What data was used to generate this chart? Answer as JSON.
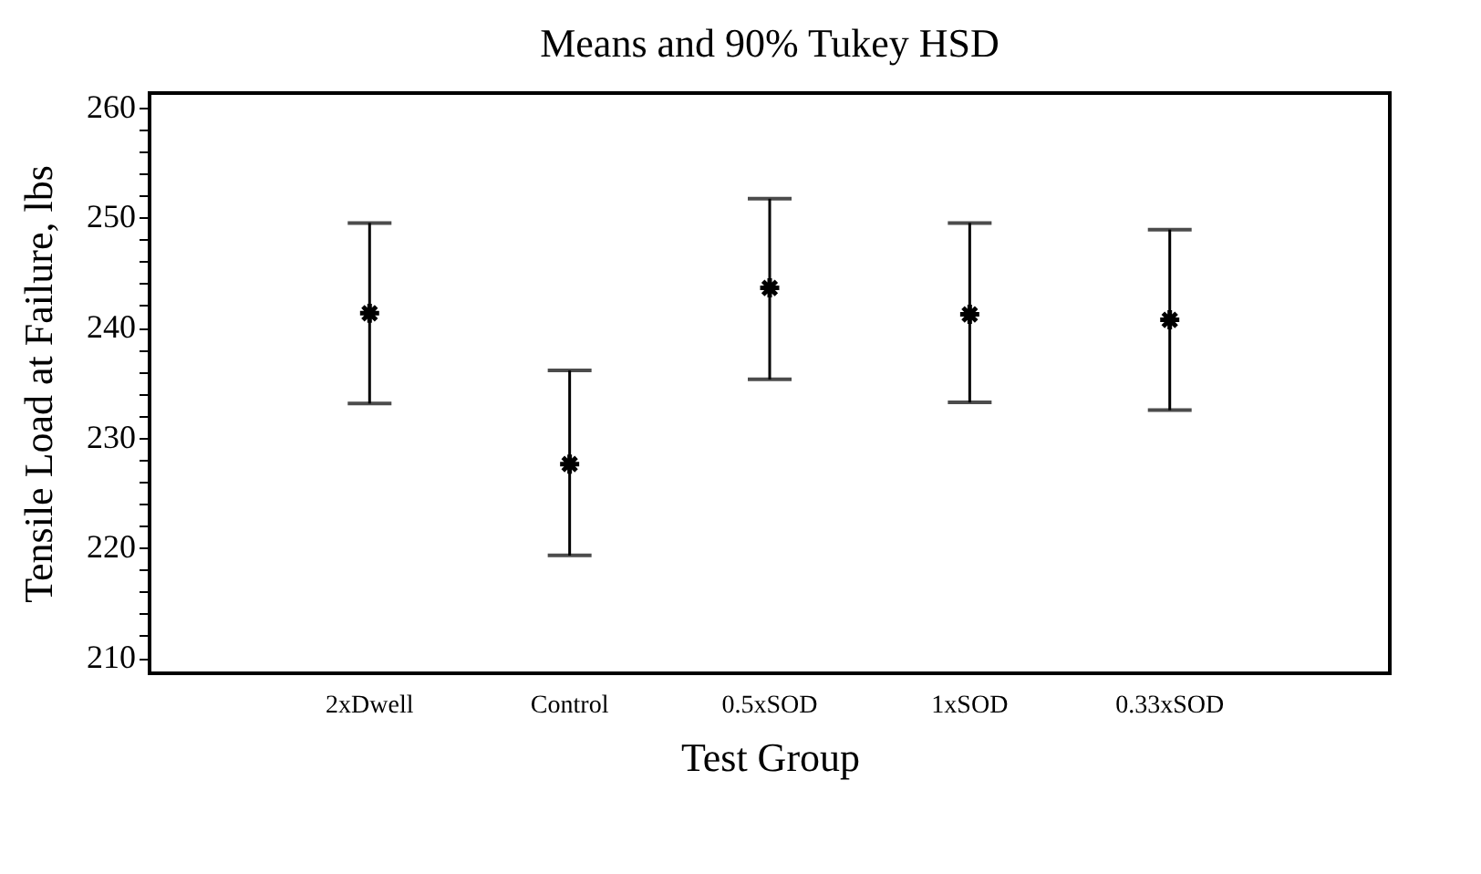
{
  "chart_data": {
    "type": "scatter",
    "title": "Means and 90% Tukey HSD",
    "xlabel": "Test Group",
    "ylabel": "Tensile Load at Failure, lbs",
    "categories": [
      "2xDwell",
      "Control",
      "0.5xSOD",
      "1xSOD",
      "0.33xSOD"
    ],
    "series": [
      {
        "color": "#000000",
        "values": [
          241.3,
          227.6,
          243.6,
          241.2,
          240.7
        ],
        "errors": [
          [
            233.1,
            249.5
          ],
          [
            219.3,
            236.1
          ],
          [
            235.3,
            251.7
          ],
          [
            233.2,
            249.5
          ],
          [
            232.5,
            248.9
          ]
        ]
      }
    ],
    "ylim": [
      208.6,
      261.3
    ],
    "yticks": [
      210,
      {
        "value": 212,
        "label": null
      },
      {
        "value": 214,
        "label": null
      },
      {
        "value": 216,
        "label": null
      },
      {
        "value": 218,
        "label": null
      },
      220,
      {
        "value": 222,
        "label": null
      },
      {
        "value": 224,
        "label": null
      },
      {
        "value": 226,
        "label": null
      },
      {
        "value": 228,
        "label": null
      },
      230,
      {
        "value": 232,
        "label": null
      },
      {
        "value": 234,
        "label": null
      },
      {
        "value": 236,
        "label": null
      },
      {
        "value": 238,
        "label": null
      },
      240,
      {
        "value": 242,
        "label": null
      },
      {
        "value": 244,
        "label": null
      },
      {
        "value": 246,
        "label": null
      },
      {
        "value": 248,
        "label": null
      },
      250,
      {
        "value": 252,
        "label": null
      },
      {
        "value": 254,
        "label": null
      },
      {
        "value": 256,
        "label": null
      },
      {
        "value": 258,
        "label": null
      },
      260
    ],
    "grid": false,
    "marker": "cross"
  }
}
